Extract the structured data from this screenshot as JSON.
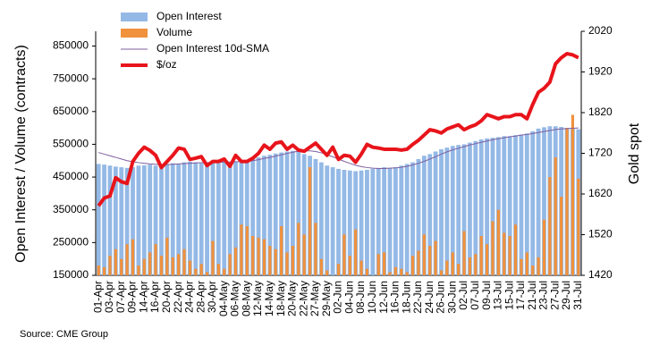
{
  "chart_data": {
    "type": "bar",
    "y_label": "Open Interest / Volume (contracts)",
    "y2_label": "Gold spot",
    "source": "Source: CME Group",
    "legend": "top-left",
    "categories": [
      "01-Apr",
      null,
      "03-Apr",
      null,
      "07-Apr",
      null,
      "09-Apr",
      null,
      "14-Apr",
      null,
      "16-Apr",
      null,
      "20-Apr",
      null,
      "22-Apr",
      null,
      "24-Apr",
      null,
      "28-Apr",
      null,
      "30-Apr",
      null,
      "04-May",
      null,
      "06-May",
      null,
      "08-May",
      null,
      "12-May",
      null,
      "14-May",
      null,
      "18-May",
      null,
      "20-May",
      null,
      "22-May",
      null,
      "27-May",
      null,
      "29-May",
      null,
      "02-Jun",
      null,
      "04-Jun",
      null,
      "08-Jun",
      null,
      "10-Jun",
      null,
      "12-Jun",
      null,
      "16-Jun",
      null,
      "18-Jun",
      null,
      "22-Jun",
      null,
      "24-Jun",
      null,
      "26-Jun",
      null,
      "30-Jun",
      null,
      "02-Jul",
      null,
      "07-Jul",
      null,
      "09-Jul",
      null,
      "13-Jul",
      null,
      "15-Jul",
      null,
      "17-Jul",
      null,
      "21-Jul",
      null,
      "23-Jul",
      null,
      "27-Jul",
      null,
      "29-Jul",
      null,
      "31-Jul"
    ],
    "ylim": [
      150000,
      895000
    ],
    "yticks": [
      150000,
      250000,
      350000,
      450000,
      550000,
      650000,
      750000,
      850000
    ],
    "y2lim": [
      1420,
      2020
    ],
    "y2ticks": [
      1420,
      1520,
      1620,
      1720,
      1820,
      1920,
      2020
    ],
    "series": [
      {
        "name": "Open Interest",
        "type": "bar",
        "color": "#94b9e6",
        "values": [
          490000,
          488000,
          485000,
          482000,
          480000,
          478000,
          480000,
          485000,
          486000,
          488000,
          485000,
          487000,
          490000,
          492000,
          490000,
          495000,
          497000,
          495000,
          492000,
          494000,
          495000,
          496000,
          497000,
          495000,
          497000,
          498000,
          500000,
          505000,
          510000,
          515000,
          518000,
          522000,
          525000,
          528000,
          530000,
          532000,
          520000,
          515000,
          505000,
          495000,
          485000,
          480000,
          475000,
          472000,
          470000,
          468000,
          470000,
          472000,
          475000,
          478000,
          480000,
          478000,
          480000,
          485000,
          490000,
          495000,
          505000,
          515000,
          520000,
          528000,
          535000,
          540000,
          545000,
          548000,
          550000,
          555000,
          560000,
          565000,
          568000,
          570000,
          572000,
          575000,
          575000,
          578000,
          580000,
          583000,
          590000,
          598000,
          602000,
          605000,
          605000,
          603000,
          600000,
          598000,
          596000
        ]
      },
      {
        "name": "Volume",
        "type": "bar",
        "color": "#f0913d",
        "values": [
          180000,
          175000,
          210000,
          230000,
          200000,
          245000,
          260000,
          180000,
          200000,
          220000,
          245000,
          210000,
          265000,
          205000,
          215000,
          230000,
          195000,
          170000,
          185000,
          160000,
          255000,
          185000,
          170000,
          215000,
          235000,
          305000,
          300000,
          270000,
          265000,
          260000,
          240000,
          230000,
          300000,
          220000,
          240000,
          310000,
          275000,
          480000,
          310000,
          200000,
          165000,
          150000,
          185000,
          275000,
          210000,
          290000,
          195000,
          170000,
          150000,
          215000,
          220000,
          160000,
          175000,
          170000,
          160000,
          210000,
          225000,
          275000,
          240000,
          255000,
          165000,
          195000,
          220000,
          185000,
          285000,
          205000,
          215000,
          270000,
          245000,
          315000,
          350000,
          280000,
          270000,
          305000,
          200000,
          220000,
          180000,
          205000,
          320000,
          450000,
          510000,
          390000,
          600000,
          640000,
          445000
        ]
      },
      {
        "name": "Open Interest 10d-SMA",
        "type": "line",
        "color": "#7f5fa0",
        "values": [
          525000,
          520000,
          515000,
          510000,
          505000,
          500000,
          497000,
          494000,
          492000,
          490000,
          489000,
          488000,
          488000,
          489000,
          490000,
          491000,
          492000,
          493000,
          494000,
          494000,
          495000,
          495000,
          496000,
          496000,
          497000,
          497000,
          498000,
          500000,
          503000,
          507000,
          510000,
          514000,
          518000,
          522000,
          526000,
          529000,
          530000,
          530000,
          528000,
          524000,
          518000,
          512000,
          505000,
          498000,
          492000,
          486000,
          482000,
          479000,
          477000,
          476000,
          476000,
          477000,
          478000,
          480000,
          483000,
          487000,
          492000,
          498000,
          505000,
          512000,
          520000,
          527000,
          533000,
          538000,
          543000,
          548000,
          552000,
          556000,
          560000,
          564000,
          567000,
          570000,
          573000,
          575000,
          578000,
          580000,
          583000,
          586000,
          589000,
          592000,
          595000,
          597000,
          598000,
          599000,
          600000
        ]
      },
      {
        "name": "$/oz",
        "type": "line",
        "axis": "y2",
        "color": "#e8141b",
        "values": [
          1591,
          1610,
          1615,
          1660,
          1650,
          1646,
          1700,
          1720,
          1735,
          1727,
          1715,
          1685,
          1700,
          1715,
          1733,
          1730,
          1705,
          1708,
          1712,
          1690,
          1700,
          1700,
          1706,
          1688,
          1715,
          1700,
          1700,
          1708,
          1720,
          1740,
          1730,
          1745,
          1748,
          1730,
          1740,
          1728,
          1725,
          1735,
          1745,
          1730,
          1715,
          1735,
          1705,
          1715,
          1713,
          1698,
          1718,
          1742,
          1735,
          1733,
          1730,
          1730,
          1730,
          1728,
          1730,
          1742,
          1752,
          1765,
          1778,
          1775,
          1770,
          1780,
          1785,
          1790,
          1778,
          1785,
          1790,
          1800,
          1815,
          1810,
          1805,
          1810,
          1810,
          1815,
          1815,
          1805,
          1840,
          1870,
          1880,
          1895,
          1940,
          1955,
          1965,
          1962,
          1955
        ]
      }
    ]
  }
}
